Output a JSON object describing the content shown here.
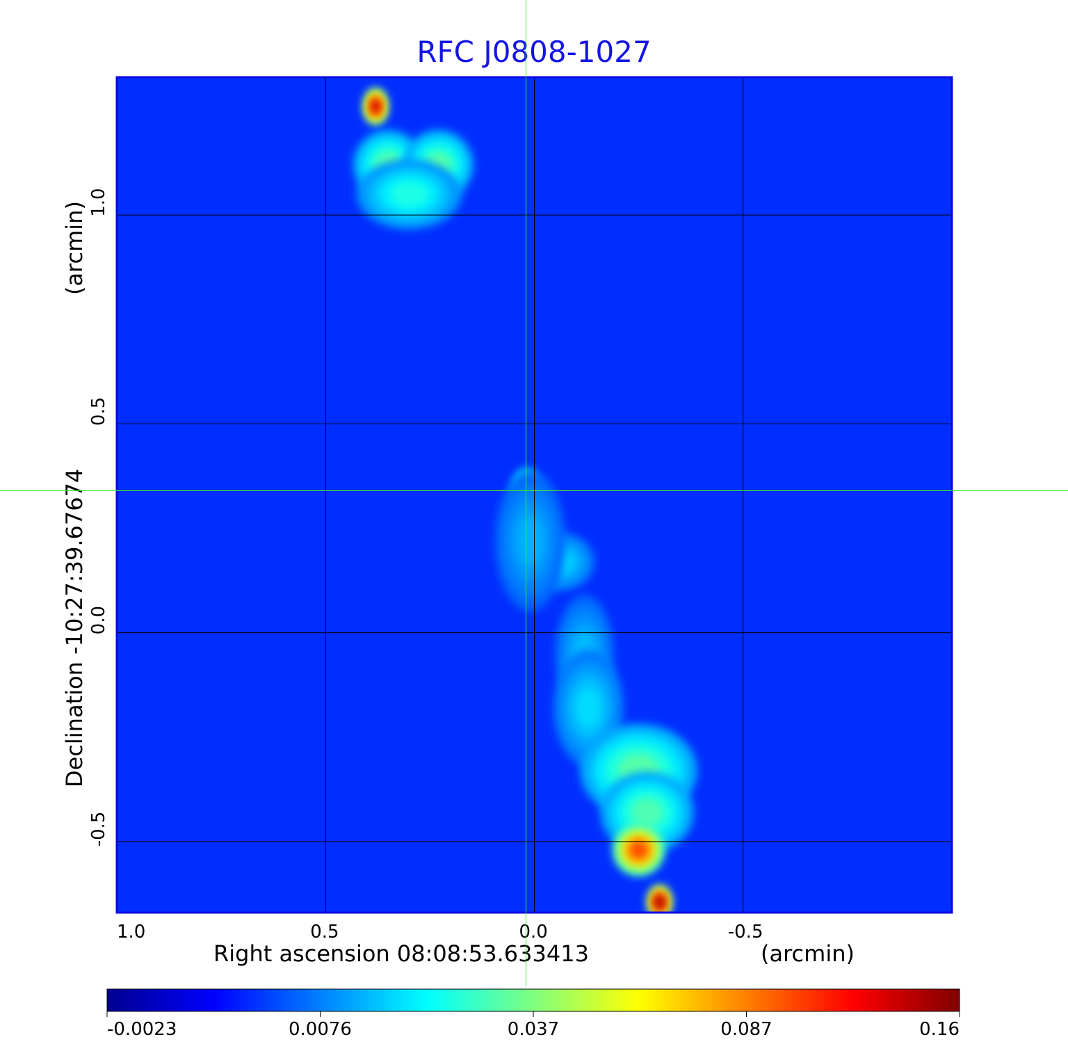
{
  "chart_data": {
    "type": "heatmap",
    "title": "RFC J0808-1027",
    "xlabel": "Right ascension  08:08:53.633413",
    "xlabel_unit": "(arcmin)",
    "ylabel": "Declination  -10:27:39.67674",
    "ylabel_unit": "(arcmin)",
    "xlim": [
      1.0,
      -1.0
    ],
    "ylim": [
      -0.67,
      1.33
    ],
    "grid": true,
    "x_ticks": [
      {
        "value": 1.0,
        "label": "1.0"
      },
      {
        "value": 0.5,
        "label": "0.5"
      },
      {
        "value": 0.0,
        "label": "0.0"
      },
      {
        "value": -0.5,
        "label": "-0.5"
      }
    ],
    "y_ticks": [
      {
        "value": 1.0,
        "label": "1.0"
      },
      {
        "value": 0.5,
        "label": "0.5"
      },
      {
        "value": 0.0,
        "label": "0.0"
      },
      {
        "value": -0.5,
        "label": "-0.5"
      }
    ],
    "crosshair": {
      "x": 0.02,
      "y": 0.34
    },
    "colorbar": {
      "colormap": "jet",
      "ticks": [
        {
          "label": "-0.0023",
          "frac": 0.0
        },
        {
          "label": "0.0076",
          "frac": 0.25
        },
        {
          "label": "0.037",
          "frac": 0.5
        },
        {
          "label": "0.087",
          "frac": 0.75
        },
        {
          "label": "0.16",
          "frac": 1.0
        }
      ]
    },
    "background_level": 0.17,
    "components": [
      {
        "x": 0.38,
        "y": 1.26,
        "sx": 0.022,
        "sy": 0.032,
        "level": 0.92
      },
      {
        "x": 0.35,
        "y": 1.12,
        "sx": 0.06,
        "sy": 0.06,
        "level": 0.46
      },
      {
        "x": 0.23,
        "y": 1.12,
        "sx": 0.06,
        "sy": 0.06,
        "level": 0.46
      },
      {
        "x": 0.3,
        "y": 1.05,
        "sx": 0.09,
        "sy": 0.06,
        "level": 0.4
      },
      {
        "x": 0.02,
        "y": 0.34,
        "sx": 0.025,
        "sy": 0.04,
        "level": 0.45
      },
      {
        "x": -0.06,
        "y": 0.17,
        "sx": 0.06,
        "sy": 0.05,
        "level": 0.34
      },
      {
        "x": 0.01,
        "y": 0.22,
        "sx": 0.06,
        "sy": 0.12,
        "level": 0.3
      },
      {
        "x": -0.12,
        "y": -0.05,
        "sx": 0.05,
        "sy": 0.1,
        "level": 0.31
      },
      {
        "x": -0.13,
        "y": -0.18,
        "sx": 0.06,
        "sy": 0.1,
        "level": 0.34
      },
      {
        "x": -0.25,
        "y": -0.33,
        "sx": 0.1,
        "sy": 0.08,
        "level": 0.46
      },
      {
        "x": -0.27,
        "y": -0.43,
        "sx": 0.08,
        "sy": 0.07,
        "level": 0.45
      },
      {
        "x": -0.25,
        "y": -0.52,
        "sx": 0.045,
        "sy": 0.045,
        "level": 0.8
      },
      {
        "x": -0.3,
        "y": -0.645,
        "sx": 0.022,
        "sy": 0.03,
        "level": 0.97
      }
    ]
  }
}
